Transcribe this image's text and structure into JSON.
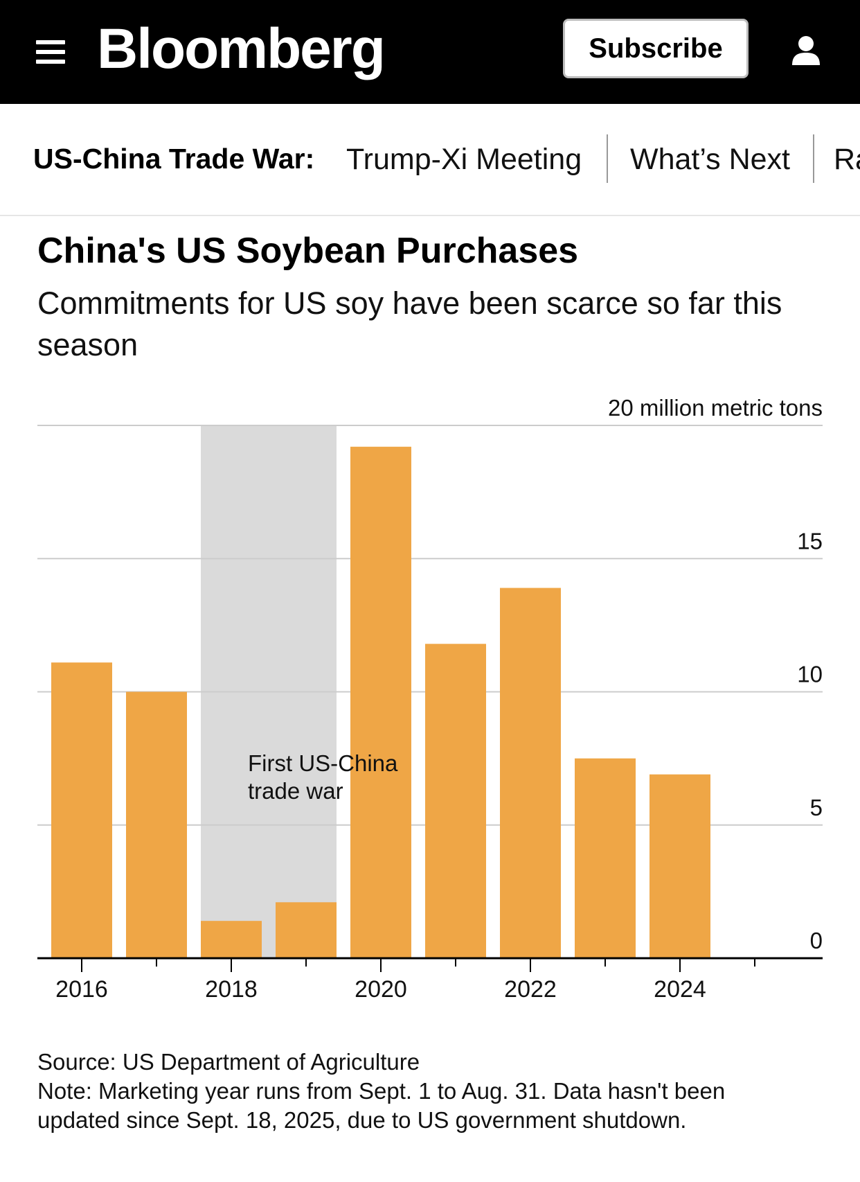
{
  "header": {
    "logo": "Bloomberg",
    "subscribe_label": "Subscribe"
  },
  "nav": {
    "label": "US-China Trade War:",
    "items": [
      "Trump-Xi Meeting",
      "What’s Next",
      "Ra"
    ]
  },
  "colors": {
    "bar": "#EFA646",
    "shade": "#DADADA",
    "grid": "#CCCCCC",
    "axis": "#000000"
  },
  "chart_data": {
    "type": "bar",
    "title": "China's US Soybean Purchases",
    "subtitle": "Commitments for US soy have been scarce so far this season",
    "unit_label": "20 million metric tons",
    "xlabel": "",
    "ylabel": "",
    "ylim": [
      0,
      20
    ],
    "yticks": [
      0,
      5,
      10,
      15,
      20
    ],
    "ytick_labels": [
      "0",
      "5",
      "10",
      "15",
      "20 million metric tons"
    ],
    "categories": [
      2016,
      2017,
      2018,
      2019,
      2020,
      2021,
      2022,
      2023,
      2024,
      2025
    ],
    "values": [
      11.1,
      10.0,
      1.4,
      2.1,
      19.2,
      11.8,
      13.9,
      7.5,
      6.9,
      0
    ],
    "xtick_labels": [
      "2016",
      "2018",
      "2020",
      "2022",
      "2024"
    ],
    "xtick_label_years": [
      2016,
      2018,
      2020,
      2022,
      2024
    ],
    "shaded_region": {
      "from": 2018,
      "to": 2019
    },
    "annotation": [
      "First US-China",
      "trade war"
    ],
    "grid": true
  },
  "footer": {
    "source": "Source: US Department of Agriculture",
    "note_line1": "Note: Marketing year runs from Sept. 1 to Aug. 31. Data hasn't been",
    "note_line2": "updated since Sept. 18, 2025, due to US government shutdown."
  }
}
